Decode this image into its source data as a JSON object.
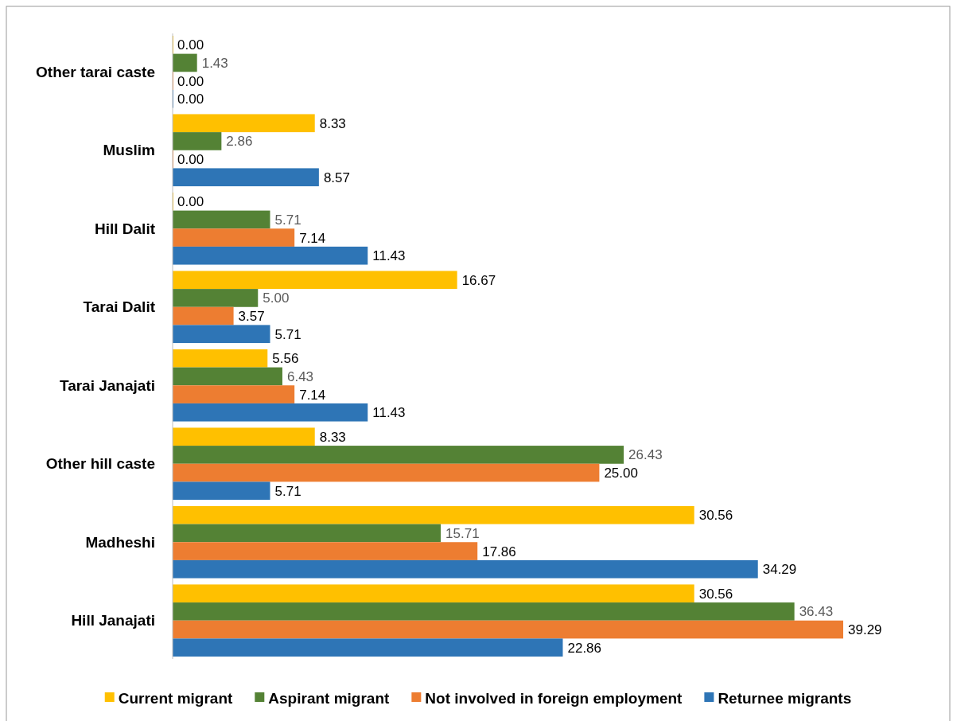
{
  "chart_data": {
    "type": "bar",
    "orientation": "horizontal",
    "categories": [
      "Other tarai caste",
      "Muslim",
      "Hill Dalit",
      "Tarai Dalit",
      "Tarai Janajati",
      "Other hill caste",
      "Madheshi",
      "Hill Janajati"
    ],
    "series": [
      {
        "name": "Current migrant",
        "color": "#ffc000",
        "values": [
          0,
          8.33,
          0,
          16.67,
          5.56,
          8.33,
          30.56,
          30.56
        ],
        "value_labels": [
          "0.00",
          "8.33",
          "0.00",
          "16.67",
          "5.56",
          "8.33",
          "30.56",
          "30.56"
        ]
      },
      {
        "name": "Aspirant migrant",
        "color": "#548235",
        "values": [
          1.43,
          2.86,
          5.71,
          5.0,
          6.43,
          26.43,
          15.71,
          36.43
        ],
        "value_labels": [
          "1.43",
          "2.86",
          "5.71",
          "5.00",
          "6.43",
          "26.43",
          "15.71",
          "36.43"
        ]
      },
      {
        "name": "Not involved in foreign employment",
        "color": "#ed7d31",
        "values": [
          0,
          0,
          7.14,
          3.57,
          7.14,
          25.0,
          17.86,
          39.29
        ],
        "value_labels": [
          "0.00",
          "0.00",
          "7.14",
          "3.57",
          "7.14",
          "25.00",
          "17.86",
          "39.29"
        ]
      },
      {
        "name": "Returnee migrants",
        "color": "#2e75b6",
        "values": [
          0,
          8.57,
          11.43,
          5.71,
          11.43,
          5.71,
          34.29,
          22.86
        ],
        "value_labels": [
          "0.00",
          "8.57",
          "11.43",
          "5.71",
          "11.43",
          "5.71",
          "34.29",
          "22.86"
        ]
      }
    ],
    "tick_labels": "y",
    "legend": "bottom"
  }
}
